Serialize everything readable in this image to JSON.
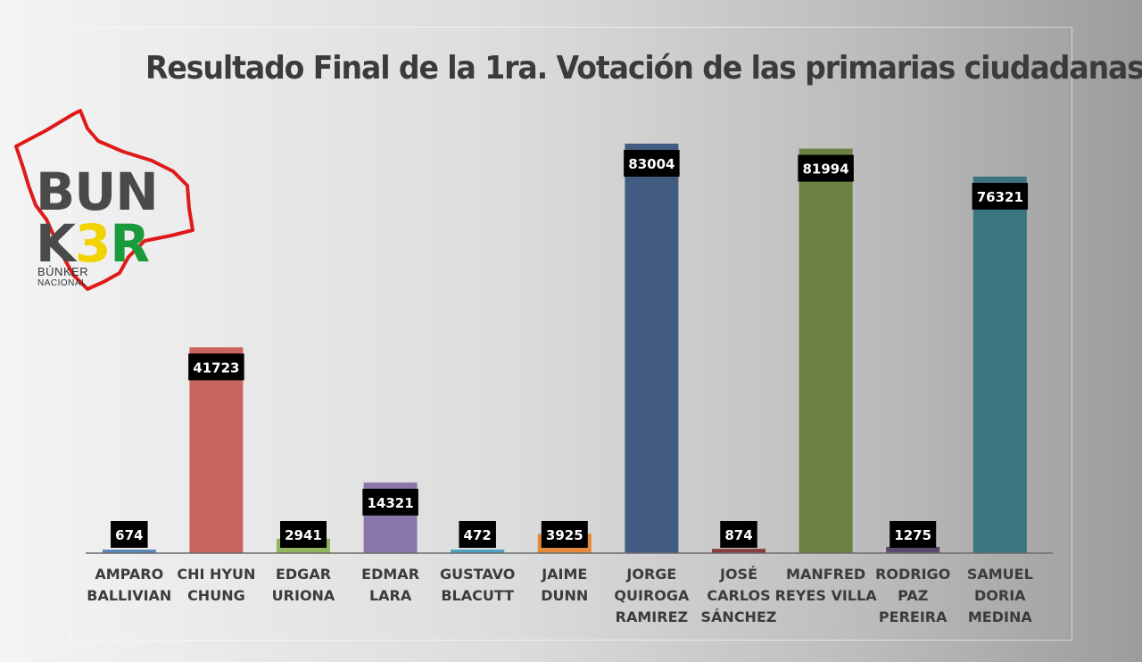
{
  "chart_data": {
    "type": "bar",
    "title": "Resultado Final de la 1ra. Votación de las primarias ciudadanas",
    "categories": [
      [
        "AMPARO",
        "BALLIVIAN"
      ],
      [
        "CHI HYUN",
        "CHUNG"
      ],
      [
        "EDGAR",
        "URIONA"
      ],
      [
        "EDMAR",
        "LARA"
      ],
      [
        "GUSTAVO",
        "BLACUTT"
      ],
      [
        "JAIME",
        "DUNN"
      ],
      [
        "JORGE",
        "QUIROGA",
        "RAMIREZ"
      ],
      [
        "JOSÉ",
        "CARLOS",
        "SÁNCHEZ"
      ],
      [
        "MANFRED",
        "REYES VILLA"
      ],
      [
        "RODRIGO",
        "PAZ",
        "PEREIRA"
      ],
      [
        "SAMUEL",
        "DORIA",
        "MEDINA"
      ]
    ],
    "values": [
      674,
      41723,
      2941,
      14321,
      472,
      3925,
      83004,
      874,
      81994,
      1275,
      76321
    ],
    "data_labels": [
      "674",
      "41723",
      "2941",
      "14321",
      "472",
      "3925",
      "83004",
      "874",
      "81994",
      "1275",
      "76321"
    ],
    "colors": [
      "#5b86b8",
      "#c96560",
      "#94b45e",
      "#8b76aa",
      "#4ba3bf",
      "#e48a3a",
      "#415c80",
      "#8a3d3a",
      "#6c8044",
      "#5c4a6e",
      "#3a7580"
    ],
    "ylim": [
      0,
      83004
    ],
    "grid": false,
    "legend": "none"
  },
  "logo": {
    "line1": "BUN",
    "line2_k": "K",
    "line2_3": "3",
    "line2_r": "R",
    "sub1": "BÚNKER",
    "sub2": "NACIONAL"
  }
}
